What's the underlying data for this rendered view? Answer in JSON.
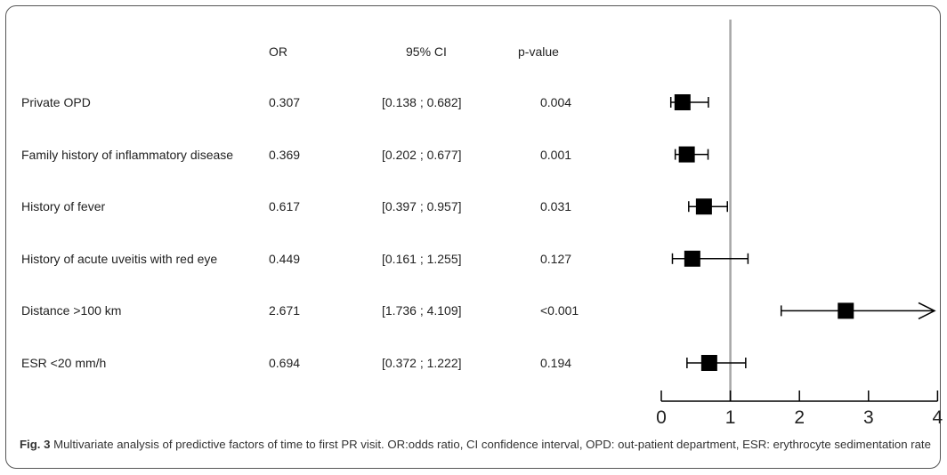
{
  "chart_data": {
    "type": "forest",
    "columns": {
      "or": "OR",
      "ci": "95% CI",
      "p": "p-value"
    },
    "rows": [
      {
        "label": "Private OPD",
        "or_text": "0.307",
        "ci_text": "[0.138 ; 0.682]",
        "p_text": "0.004",
        "or": 0.307,
        "ci_low": 0.138,
        "ci_high": 0.682
      },
      {
        "label": "Family history of inflammatory disease",
        "or_text": "0.369",
        "ci_text": "[0.202 ; 0.677]",
        "p_text": "0.001",
        "or": 0.369,
        "ci_low": 0.202,
        "ci_high": 0.677
      },
      {
        "label": "History of fever",
        "or_text": "0.617",
        "ci_text": "[0.397 ; 0.957]",
        "p_text": "0.031",
        "or": 0.617,
        "ci_low": 0.397,
        "ci_high": 0.957
      },
      {
        "label": "History of acute uveitis with red eye",
        "or_text": "0.449",
        "ci_text": "[0.161 ; 1.255]",
        "p_text": "0.127",
        "or": 0.449,
        "ci_low": 0.161,
        "ci_high": 1.255
      },
      {
        "label": "Distance >100 km",
        "or_text": "2.671",
        "ci_text": "[1.736 ; 4.109]",
        "p_text": "<0.001",
        "or": 2.671,
        "ci_low": 1.736,
        "ci_high": 4.109
      },
      {
        "label": "ESR <20 mm/h",
        "or_text": "0.694",
        "ci_text": "[0.372 ; 1.222]",
        "p_text": "0.194",
        "or": 0.694,
        "ci_low": 0.372,
        "ci_high": 1.222
      }
    ],
    "xlim": [
      0,
      4
    ],
    "x_ticks": [
      0,
      1,
      2,
      3,
      4
    ],
    "reference_line": 1,
    "colors": {
      "marker": "#000000",
      "reference_line": "#a6a6a6"
    }
  },
  "caption": {
    "label": "Fig. 3",
    "text": "Multivariate analysis of predictive factors of time to first PR visit. OR:odds ratio, CI confidence interval, OPD: out-patient department, ESR: erythrocyte sedimentation rate"
  }
}
